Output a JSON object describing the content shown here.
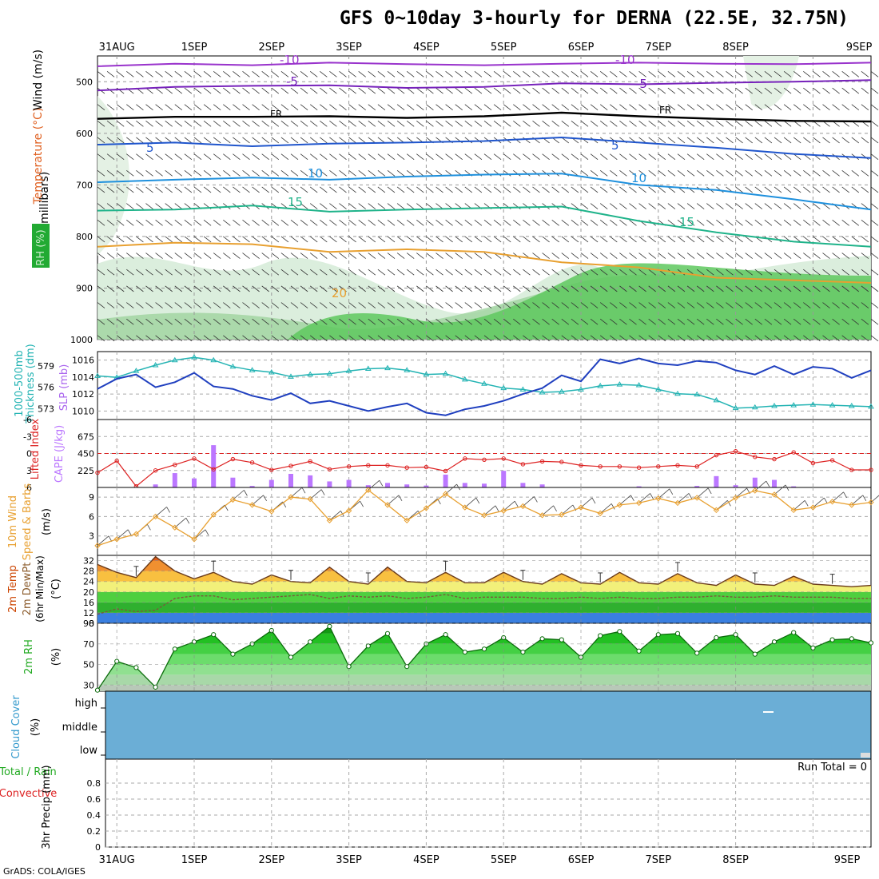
{
  "title": "GFS 0~10day 3-hourly for DERNA (22.5E, 32.75N)",
  "footer": "GrADS: COLA/IGES",
  "run_total_label": "Run Total = 0",
  "colors": {
    "wind_speed": "#e8a030",
    "temp_band": "#f0a028",
    "rh_green": "#22cc22",
    "cloud": "#6baed6",
    "slp": "#1f3fbf",
    "thickness": "#22b3b3",
    "li": "#dd2222",
    "cape": "#bb77ff"
  },
  "chart_data": [
    {
      "type": "line",
      "panel": "vertical profile",
      "ylabel": "Temperature (°C)   RH (%)   Wind (m/s)   (millibars)",
      "x_ticks": [
        "31AUG",
        "1SEP",
        "2SEP",
        "3SEP",
        "4SEP",
        "5SEP",
        "6SEP",
        "7SEP",
        "8SEP",
        "9SEP"
      ],
      "y_ticks": [
        500,
        600,
        700,
        800,
        900,
        1000
      ],
      "ylim": [
        1000,
        450
      ],
      "contour_labels": [
        "-10",
        "-5",
        "FR",
        "5",
        "10",
        "15",
        "20",
        "-10",
        "-5",
        "FR",
        "5",
        "10",
        "15"
      ],
      "temperature_isotherms": [
        {
          "name": "-10",
          "y": [
            470,
            465,
            468,
            463,
            466,
            468,
            465,
            463,
            465,
            466,
            463
          ]
        },
        {
          "name": "-5",
          "y": [
            517,
            510,
            508,
            507,
            512,
            510,
            503,
            505,
            502,
            500,
            497
          ]
        },
        {
          "name": "FR",
          "y": [
            572,
            568,
            568,
            567,
            570,
            567,
            560,
            567,
            572,
            576,
            577
          ]
        },
        {
          "name": "5",
          "y": [
            622,
            618,
            625,
            620,
            618,
            615,
            608,
            618,
            628,
            640,
            648
          ]
        },
        {
          "name": "10",
          "y": [
            695,
            690,
            686,
            690,
            684,
            680,
            678,
            700,
            710,
            728,
            748
          ]
        },
        {
          "name": "15",
          "y": [
            750,
            748,
            740,
            752,
            748,
            745,
            742,
            770,
            792,
            810,
            820
          ]
        },
        {
          "name": "20",
          "y": [
            820,
            812,
            815,
            830,
            825,
            830,
            850,
            860,
            880,
            885,
            890
          ]
        }
      ]
    },
    {
      "type": "line",
      "panel": "SLP and thickness",
      "ylabel_left": "1000-500mb Thickness (dm)",
      "ylabel_right": "SLP (mb)",
      "thickness_ticks": [
        573,
        576,
        579
      ],
      "slp_ticks": [
        1010,
        1012,
        1014,
        1016
      ],
      "slp_ylim": [
        1009,
        1017
      ],
      "x": [
        0,
        6,
        12,
        18,
        24,
        30,
        36,
        42,
        48,
        54,
        60,
        66,
        72,
        78,
        84,
        90,
        96,
        102,
        108,
        114,
        120,
        126,
        132,
        138,
        144,
        150,
        156,
        162,
        168,
        174,
        180,
        186,
        192,
        198,
        204,
        210,
        216,
        222,
        228,
        234,
        240
      ],
      "series": [
        {
          "name": "SLP",
          "values": [
            1012.6,
            1013.8,
            1014.3,
            1012.8,
            1013.4,
            1014.5,
            1012.9,
            1012.6,
            1011.8,
            1011.3,
            1012.1,
            1010.9,
            1011.2,
            1010.6,
            1010.0,
            1010.5,
            1010.9,
            1009.8,
            1009.5,
            1010.2,
            1010.6,
            1011.2,
            1012.0,
            1012.7,
            1014.2,
            1013.5,
            1016.1,
            1015.6,
            1016.2,
            1015.6,
            1015.4,
            1015.9,
            1015.7,
            1014.8,
            1014.3,
            1015.3,
            1014.3,
            1015.2,
            1015.0,
            1013.9,
            1014.8
          ]
        },
        {
          "name": "Thickness",
          "values": [
            577.6,
            577.4,
            578.3,
            579.1,
            579.8,
            580.2,
            579.8,
            578.9,
            578.4,
            578.1,
            577.5,
            577.8,
            577.9,
            578.3,
            578.6,
            578.7,
            578.4,
            577.8,
            577.9,
            577.1,
            576.5,
            575.9,
            575.7,
            575.3,
            575.4,
            575.7,
            576.2,
            576.4,
            576.3,
            575.7,
            575.1,
            575.0,
            574.2,
            573.1,
            573.2,
            573.4,
            573.5,
            573.6,
            573.5,
            573.4,
            573.3
          ]
        }
      ]
    },
    {
      "type": "bar",
      "panel": "Lifted Index and CAPE",
      "ylabel_left": "Lifted Index",
      "ylabel_right": "CAPE (J/kg)",
      "li_ticks": [
        6,
        3,
        0,
        -3,
        -6
      ],
      "cape_ticks": [
        225,
        450,
        675
      ],
      "x": [
        0,
        6,
        12,
        18,
        24,
        30,
        36,
        42,
        48,
        54,
        60,
        66,
        72,
        78,
        84,
        90,
        96,
        102,
        108,
        114,
        120,
        126,
        132,
        138,
        144,
        150,
        156,
        162,
        168,
        174,
        180,
        186,
        192,
        198,
        204,
        210,
        216,
        222,
        228,
        234,
        240
      ],
      "series": [
        {
          "name": "Lifted Index",
          "values": [
            3.4,
            1.3,
            5.8,
            3.0,
            2.0,
            0.9,
            2.8,
            1.0,
            1.6,
            2.9,
            2.2,
            1.4,
            2.8,
            2.3,
            2.1,
            2.1,
            2.5,
            2.4,
            3.1,
            0.9,
            1.1,
            0.9,
            1.9,
            1.4,
            1.5,
            2.1,
            2.3,
            2.3,
            2.5,
            2.3,
            2.1,
            2.3,
            0.3,
            -0.4,
            0.6,
            1.0,
            -0.2,
            1.7,
            1.2,
            2.9,
            2.9
          ]
        },
        {
          "name": "CAPE",
          "values": [
            0,
            0,
            0,
            40,
            190,
            120,
            560,
            130,
            20,
            100,
            180,
            160,
            80,
            100,
            30,
            60,
            40,
            25,
            170,
            60,
            50,
            220,
            60,
            40,
            0,
            0,
            5,
            0,
            15,
            0,
            0,
            20,
            150,
            30,
            130,
            100,
            15,
            5,
            0,
            0,
            0
          ]
        }
      ]
    },
    {
      "type": "line",
      "panel": "10m Wind",
      "ylabel": "10m Wind Speed & Barbs (m/s)",
      "y_ticks": [
        3,
        6,
        9
      ],
      "ylim": [
        0,
        10.5
      ],
      "x": [
        0,
        6,
        12,
        18,
        24,
        30,
        36,
        42,
        48,
        54,
        60,
        66,
        72,
        78,
        84,
        90,
        96,
        102,
        108,
        114,
        120,
        126,
        132,
        138,
        144,
        150,
        156,
        162,
        168,
        174,
        180,
        186,
        192,
        198,
        204,
        210,
        216,
        222,
        228,
        234,
        240
      ],
      "series": [
        {
          "name": "Wind Speed",
          "values": [
            1.5,
            2.5,
            3.3,
            6.0,
            4.3,
            2.5,
            6.3,
            8.6,
            7.8,
            6.8,
            9.0,
            8.7,
            5.4,
            6.9,
            10.1,
            7.8,
            5.4,
            7.3,
            9.5,
            7.4,
            6.2,
            6.9,
            7.6,
            6.2,
            6.3,
            7.4,
            6.5,
            7.8,
            8.1,
            8.8,
            8.1,
            8.9,
            7.0,
            8.9,
            10.0,
            9.4,
            7.0,
            7.4,
            8.3,
            7.8,
            8.2
          ]
        }
      ]
    },
    {
      "type": "area",
      "panel": "2m Temp and DewPt",
      "ylabel": "2m Temp 2m DewPt (6hr Min/Max) (°C)",
      "y_ticks": [
        8,
        12,
        16,
        20,
        24,
        28,
        32
      ],
      "ylim": [
        8,
        34
      ],
      "x": [
        0,
        6,
        12,
        18,
        24,
        30,
        36,
        42,
        48,
        54,
        60,
        66,
        72,
        78,
        84,
        90,
        96,
        102,
        108,
        114,
        120,
        126,
        132,
        138,
        144,
        150,
        156,
        162,
        168,
        174,
        180,
        186,
        192,
        198,
        204,
        210,
        216,
        222,
        228,
        234,
        240
      ],
      "series": [
        {
          "name": "2m Temp",
          "values": [
            30.5,
            27.5,
            25.5,
            33.5,
            28.0,
            25.0,
            27.5,
            24.0,
            23.0,
            26.5,
            24.0,
            23.5,
            29.5,
            24.0,
            23.0,
            29.5,
            24.0,
            23.5,
            27.5,
            23.5,
            23.5,
            27.5,
            24.0,
            23.0,
            27.0,
            23.5,
            23.0,
            27.5,
            23.5,
            23.0,
            27.0,
            23.5,
            22.5,
            26.5,
            23.0,
            22.5,
            26.0,
            23.0,
            22.5,
            22.0,
            22.5
          ]
        },
        {
          "name": "2m DewPt",
          "values": [
            11.5,
            13.5,
            12.5,
            13.0,
            17.5,
            18.5,
            18.5,
            17.0,
            17.5,
            18.0,
            18.5,
            19.0,
            17.5,
            18.5,
            18.0,
            18.5,
            17.5,
            18.0,
            19.0,
            17.5,
            18.0,
            18.0,
            18.0,
            17.5,
            17.5,
            18.0,
            17.5,
            18.0,
            17.5,
            17.5,
            18.0,
            18.0,
            18.5,
            18.0,
            18.0,
            18.5,
            18.0,
            18.0,
            18.0,
            17.5,
            17.5
          ]
        }
      ]
    },
    {
      "type": "area",
      "panel": "2m RH",
      "ylabel": "2m RH (%)",
      "y_ticks": [
        30,
        50,
        70,
        90
      ],
      "ylim": [
        24,
        90
      ],
      "x": [
        0,
        6,
        12,
        18,
        24,
        30,
        36,
        42,
        48,
        54,
        60,
        66,
        72,
        78,
        84,
        90,
        96,
        102,
        108,
        114,
        120,
        126,
        132,
        138,
        144,
        150,
        156,
        162,
        168,
        174,
        180,
        186,
        192,
        198,
        204,
        210,
        216,
        222,
        228,
        234,
        240
      ],
      "series": [
        {
          "name": "2m RH",
          "values": [
            25,
            53,
            47,
            28,
            65,
            72,
            79,
            60,
            70,
            83,
            57,
            72,
            87,
            48,
            68,
            80,
            48,
            70,
            79,
            62,
            65,
            76,
            62,
            75,
            74,
            57,
            78,
            82,
            63,
            79,
            80,
            61,
            76,
            79,
            60,
            72,
            81,
            66,
            74,
            75,
            71
          ]
        }
      ]
    },
    {
      "type": "heatmap",
      "panel": "Cloud Cover",
      "ylabel": "Cloud Cover (%)",
      "y_ticks": [
        "low",
        "middle",
        "high"
      ]
    },
    {
      "type": "bar",
      "panel": "3hr Precip",
      "ylabel": "3hr Precip (mm)",
      "legend": [
        "Total / Rain",
        "Convective"
      ],
      "y_ticks": [
        0,
        0.2,
        0.4,
        0.6,
        0.8
      ],
      "ylim": [
        0,
        1
      ],
      "x_ticks": [
        "31AUG",
        "1SEP",
        "2SEP",
        "3SEP",
        "4SEP",
        "5SEP",
        "6SEP",
        "7SEP",
        "8SEP",
        "9SEP"
      ],
      "values": []
    }
  ]
}
